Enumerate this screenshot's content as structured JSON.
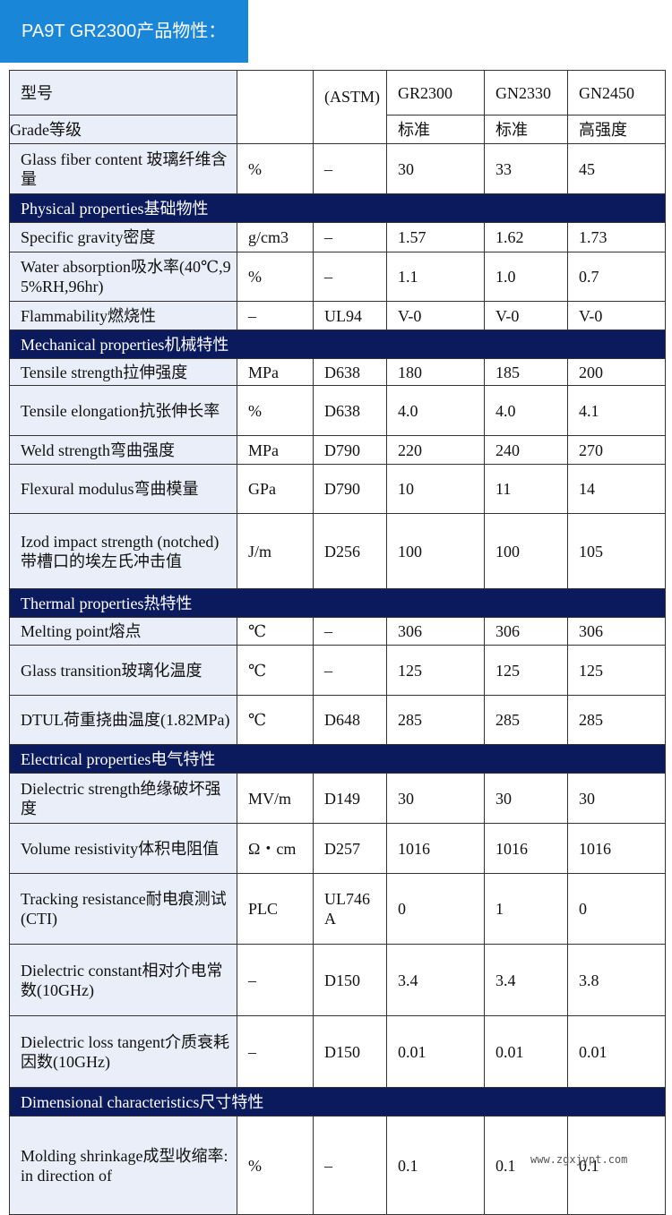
{
  "header": {
    "title": "PA9T GR2300产品物性："
  },
  "table": {
    "head": {
      "model_label": "型号",
      "grade_label": "Grade等级",
      "astm": "(ASTM)",
      "grades": [
        "GR2300",
        "GN2330",
        "GN2450"
      ],
      "levels": [
        "标准",
        "标准",
        "高强度"
      ]
    },
    "rows": [
      [
        "Glass fiber content 玻璃纤维含量",
        "%",
        "–",
        "30",
        "33",
        "45"
      ],
      {
        "section": "Physical properties基础物性"
      },
      [
        "Specific gravity密度",
        "g/cm3",
        "–",
        "1.57",
        "1.62",
        "1.73"
      ],
      [
        "Water absorption吸水率(40℃,95%RH,96hr)",
        "%",
        "–",
        "1.1",
        "1.0",
        "0.7"
      ],
      [
        "Flammability燃烧性",
        "–",
        "UL94",
        "V-0",
        "V-0",
        "V-0"
      ],
      {
        "section": "Mechanical properties机械特性"
      },
      [
        "Tensile strength拉伸强度",
        "MPa",
        "D638",
        "180",
        "185",
        "200"
      ],
      [
        "Tensile elongation抗张伸长率",
        "%",
        "D638",
        "4.0",
        "4.0",
        "4.1"
      ],
      [
        "Weld strength弯曲强度",
        "MPa",
        "D790",
        "220",
        "240",
        "270"
      ],
      [
        "Flexural modulus弯曲模量",
        "GPa",
        "D790",
        "10",
        "11",
        "14"
      ],
      [
        "Izod impact strength (notched)带槽口的埃左氏冲击值",
        "J/m",
        "D256",
        "100",
        "100",
        "105"
      ],
      {
        "section": "Thermal properties热特性"
      },
      [
        "Melting point熔点",
        "℃",
        "–",
        "306",
        "306",
        "306"
      ],
      [
        "Glass transition玻璃化温度",
        "℃",
        "–",
        "125",
        "125",
        "125"
      ],
      [
        "DTUL荷重挠曲温度(1.82MPa)",
        "℃",
        "D648",
        "285",
        "285",
        "285"
      ],
      {
        "section": "Electrical properties电气特性"
      },
      [
        "Dielectric strength绝缘破坏强度",
        "MV/m",
        "D149",
        "30",
        "30",
        "30"
      ],
      [
        "Volume resistivity体积电阻值",
        "Ω・cm",
        "D257",
        "1016",
        "1016",
        "1016"
      ],
      [
        "Tracking resistance耐电痕测试(CTI)",
        "PLC",
        "UL746A",
        "0",
        "1",
        "0"
      ],
      [
        "Dielectric constant相对介电常数(10GHz)",
        "–",
        "D150",
        "3.4",
        "3.4",
        "3.8"
      ],
      [
        "Dielectric loss tangent介质衰耗因数(10GHz)",
        "–",
        "D150",
        "0.01",
        "0.01",
        "0.01"
      ],
      {
        "section": "Dimensional characteristics尺寸特性"
      },
      [
        "Molding shrinkage成型收缩率:in direction of",
        "%",
        "–",
        "0.1",
        "0.1",
        "0.1"
      ]
    ]
  },
  "watermark": "www.zgxjypt.com"
}
